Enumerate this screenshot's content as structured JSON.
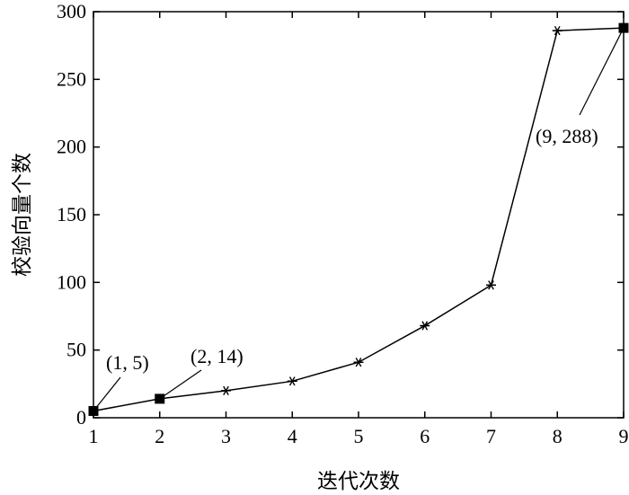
{
  "chart_data": {
    "type": "line",
    "xlabel": "迭代次数",
    "ylabel": "校验向量个数",
    "xlim": [
      1,
      9
    ],
    "ylim": [
      0,
      300
    ],
    "x_ticks": [
      1,
      2,
      3,
      4,
      5,
      6,
      7,
      8,
      9
    ],
    "y_ticks": [
      0,
      50,
      100,
      150,
      200,
      250,
      300
    ],
    "grid": false,
    "legend": "none",
    "series": [
      {
        "x": [
          1,
          2,
          3,
          4,
          5,
          6,
          7,
          8,
          9
        ],
        "y": [
          5,
          14,
          20,
          27,
          41,
          68,
          98,
          286,
          288
        ],
        "markers": [
          "square",
          "square",
          "star",
          "star",
          "star",
          "star",
          "star",
          "star",
          "square"
        ],
        "color": "#000000"
      }
    ],
    "annotations": [
      {
        "text": "(1, 5)",
        "x": 1,
        "y": 5
      },
      {
        "text": "(2, 14)",
        "x": 2,
        "y": 14
      },
      {
        "text": "(9, 288)",
        "x": 9,
        "y": 288
      }
    ]
  }
}
